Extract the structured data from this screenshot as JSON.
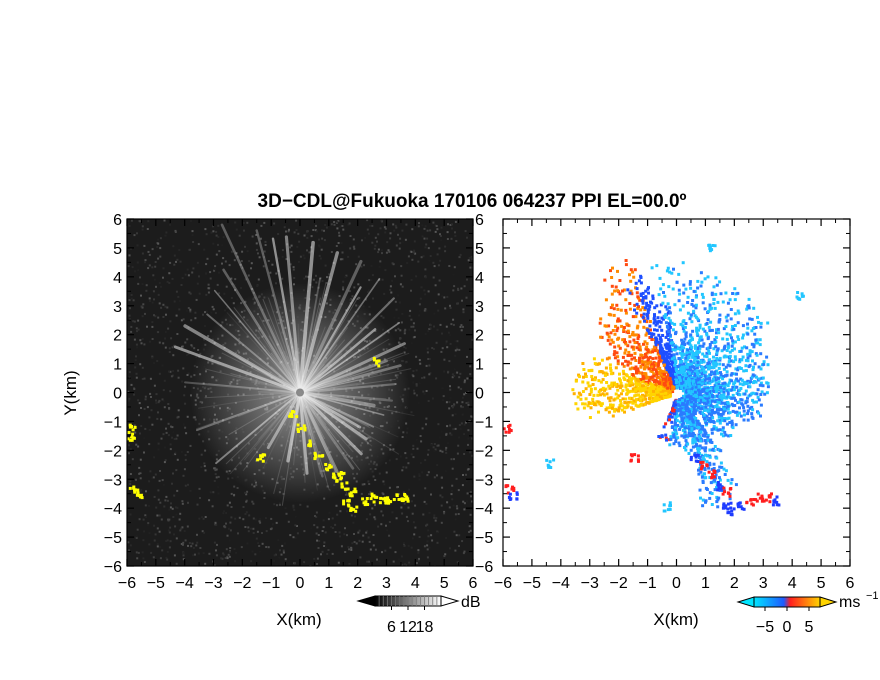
{
  "chart_data": {
    "title": "3D−CDL@Fukuoka 170106 064237 PPI EL=00.0º",
    "panels": [
      {
        "name": "reflectivity",
        "type": "heatmap",
        "xlabel": "X(km)",
        "ylabel": "Y(km)",
        "xlim": [
          -6,
          6
        ],
        "ylim": [
          -6,
          6
        ],
        "xticks": [
          -6,
          -5,
          -4,
          -3,
          -2,
          -1,
          0,
          1,
          2,
          3,
          4,
          5,
          6
        ],
        "yticks": [
          -6,
          -5,
          -4,
          -3,
          -2,
          -1,
          0,
          1,
          2,
          3,
          4,
          5,
          6
        ],
        "background_color": "#1c1c1c",
        "ray_color": "#dcdcdc",
        "highlight_color": "#ffff00",
        "colorbar": {
          "unit": "dB",
          "ticks": [
            6,
            12,
            18
          ],
          "range": [
            0,
            24
          ],
          "colors": [
            "#000000",
            "#ffffff"
          ]
        }
      },
      {
        "name": "doppler_velocity",
        "type": "heatmap",
        "xlabel": "X(km)",
        "ylabel": "",
        "xlim": [
          -6,
          6
        ],
        "ylim": [
          -6,
          6
        ],
        "xticks": [
          -6,
          -5,
          -4,
          -3,
          -2,
          -1,
          0,
          1,
          2,
          3,
          4,
          5,
          6
        ],
        "yticks": [
          -6,
          -5,
          -4,
          -3,
          -2,
          -1,
          0,
          1,
          2,
          3,
          4,
          5,
          6
        ],
        "background_color": "#ffffff",
        "colorbar": {
          "unit": "ms",
          "unit_exponent": "−1",
          "ticks": [
            "−5",
            "0",
            "5"
          ],
          "tick_values": [
            -5,
            0,
            5
          ],
          "range": [
            -7.5,
            7.5
          ],
          "colors": [
            "#00e5ff",
            "#1e5bff",
            "#ff1e1e",
            "#ffd400"
          ]
        }
      }
    ]
  }
}
